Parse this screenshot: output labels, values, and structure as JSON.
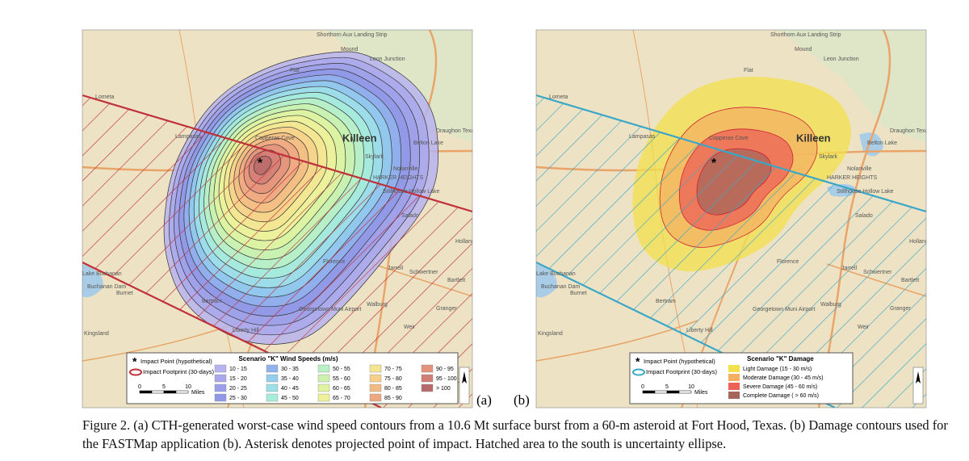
{
  "map_labels": [
    "Shorthorn Aux Landing Strip",
    "Killeen",
    "Skylark",
    "Nolanville",
    "HARKER HEIGHTS",
    "Belton Lake",
    "Stillhouse Hollow Lake",
    "Lampasas",
    "Salado",
    "Florence",
    "Jarrell",
    "Schwertner",
    "Bartlett",
    "Burnet",
    "Bertram",
    "Georgetown Muni Airport",
    "Walburg",
    "Granger",
    "Liberty Hill",
    "Kingsland",
    "Buchanan Dam",
    "Lake Buchanan",
    "Copperas Cove",
    "Leon Junction",
    "Flat",
    "Lometa",
    "Draughon Texas",
    "Holland",
    "Weir",
    "Mound"
  ],
  "panels": [
    {
      "label": "(a)",
      "ellipse_color": "#c0303a",
      "legend": {
        "impact_point": "Impact Point (hypothetical)",
        "impact_footprint": "Impact Footprint (30-days)",
        "scale": [
          "0",
          "5",
          "10"
        ],
        "scale_unit": "Miles",
        "title": "Scenario \"K\" Wind Speeds (m/s)",
        "classes": [
          {
            "label": "10 - 15",
            "color": "#b7b3ee"
          },
          {
            "label": "15 - 20",
            "color": "#a9a8ec"
          },
          {
            "label": "20 - 25",
            "color": "#9c9fe9"
          },
          {
            "label": "25 - 30",
            "color": "#8f99e6"
          },
          {
            "label": "30 - 35",
            "color": "#8fb3ec"
          },
          {
            "label": "35 - 40",
            "color": "#94cdee"
          },
          {
            "label": "40 - 45",
            "color": "#9de0e8"
          },
          {
            "label": "45 - 50",
            "color": "#a8ecdc"
          },
          {
            "label": "50 - 55",
            "color": "#b9f0c4"
          },
          {
            "label": "55 - 60",
            "color": "#cdf2ae"
          },
          {
            "label": "60 - 65",
            "color": "#dff3a0"
          },
          {
            "label": "65 - 70",
            "color": "#eef19a"
          },
          {
            "label": "70 - 75",
            "color": "#f5e592"
          },
          {
            "label": "75 - 80",
            "color": "#f6d08a"
          },
          {
            "label": "80 - 85",
            "color": "#f3bb84"
          },
          {
            "label": "85 - 90",
            "color": "#eea781"
          },
          {
            "label": "90 - 95",
            "color": "#e4927c"
          },
          {
            "label": "95 - 100",
            "color": "#d27d76"
          },
          {
            "label": "> 100",
            "color": "#b86a6a"
          }
        ]
      }
    },
    {
      "label": "(b)",
      "ellipse_color": "#3aa6c8",
      "legend": {
        "impact_point": "Impact Point (hypothetical)",
        "impact_footprint": "Impact Footprint (30-days)",
        "scale": [
          "0",
          "5",
          "10"
        ],
        "scale_unit": "Miles",
        "title": "Scenario \"K\" Damage",
        "classes": [
          {
            "label": "Light Damage (15 - 30 m/s)",
            "color": "#f2e04c"
          },
          {
            "label": "Moderate Damage (30 - 45 m/s)",
            "color": "#f3b062"
          },
          {
            "label": "Severe Damage (45 - 60  m/s)",
            "color": "#ec6257"
          },
          {
            "label": "Complete Damage ( > 60 m/s)",
            "color": "#a5675c"
          }
        ]
      }
    }
  ],
  "caption": "Figure 2. (a) CTH-generated worst-case wind speed contours from a 10.6 Mt surface burst from a 60-m asteroid at Fort Hood, Texas.  (b) Damage contours used for the FASTMap application (b).  Asterisk denotes projected point of impact. Hatched area to the south is uncertainty ellipse."
}
